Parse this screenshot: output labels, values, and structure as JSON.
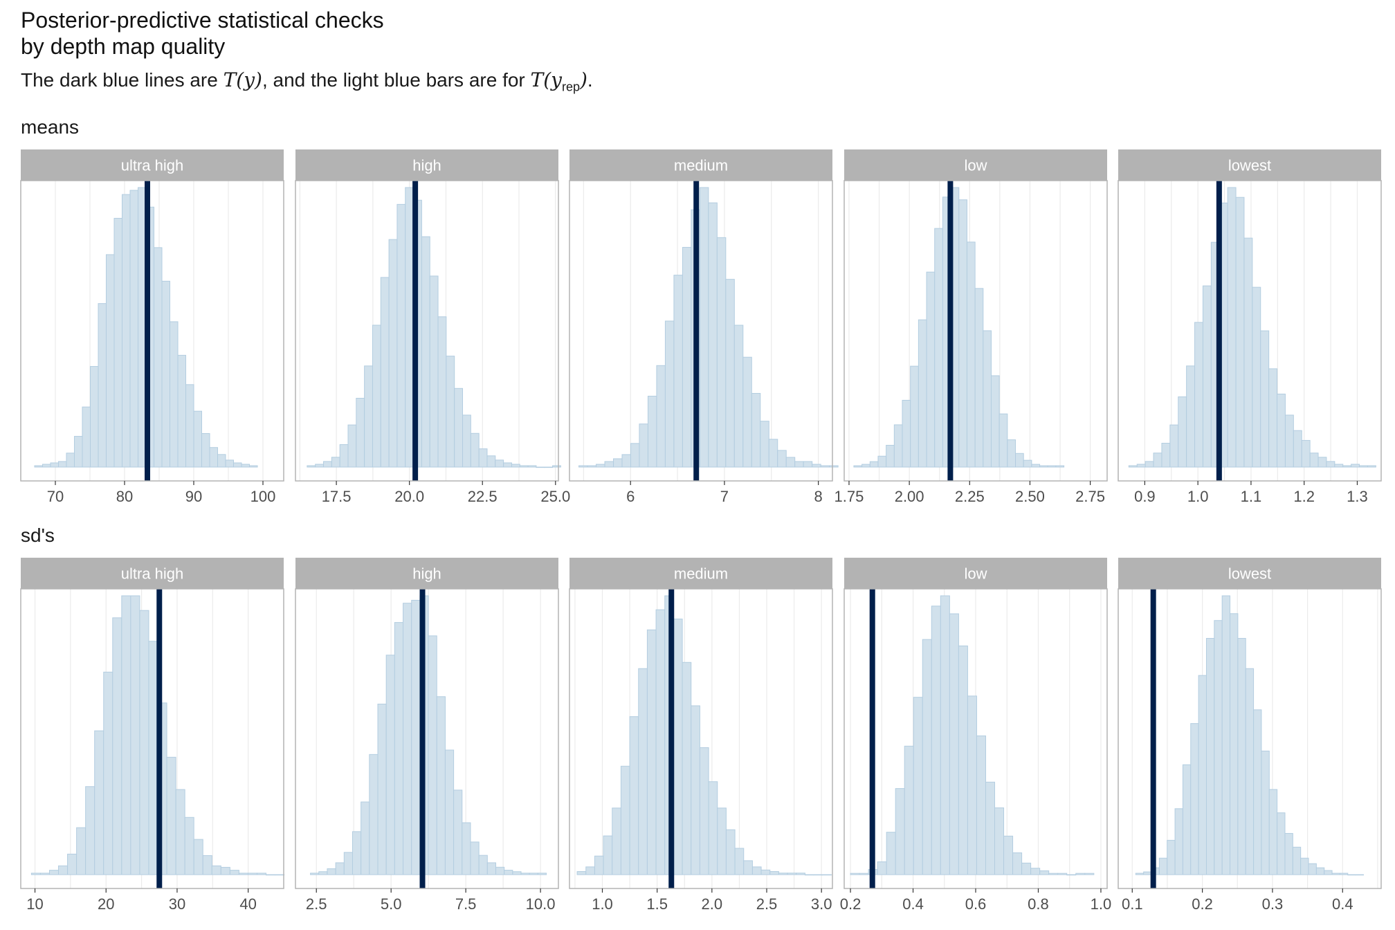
{
  "title_line1": "Posterior-predictive statistical checks",
  "title_line2": "by depth map quality",
  "subtitle": {
    "before": "The dark blue lines are ",
    "ty": "T(y)",
    "middle": ", and the light blue bars are for ",
    "ty_rep_main": "T(y",
    "ty_rep_sub": "rep",
    "ty_rep_close": ")",
    "end": "."
  },
  "colors": {
    "bar_fill": "#d1e1ec",
    "bar_stroke": "#b3cde0",
    "line": "#011f4b",
    "strip": "#b3b3b3",
    "panel_border": "#b3b3b3",
    "grid": "#ebebeb"
  },
  "chart_data": [
    {
      "row_label": "means",
      "type": "histogram",
      "panels": [
        {
          "strip": "ultra high",
          "xlim": [
            65,
            103
          ],
          "ticks": [
            70,
            80,
            90,
            100
          ],
          "tick_labels": [
            "70",
            "80",
            "90",
            "100"
          ],
          "observed": 83.3,
          "bins_start": 67,
          "bin_width": 1.15,
          "counts": [
            1,
            2,
            3,
            4,
            10,
            22,
            43,
            72,
            117,
            152,
            178,
            195,
            198,
            200,
            186,
            157,
            133,
            104,
            80,
            59,
            40,
            24,
            14,
            9,
            5,
            3,
            2,
            1
          ]
        },
        {
          "strip": "high",
          "xlim": [
            16.1,
            25.1
          ],
          "ticks": [
            17.5,
            20.0,
            22.5,
            25.0
          ],
          "tick_labels": [
            "17.5",
            "20.0",
            "22.5",
            "25.0"
          ],
          "observed": 20.2,
          "bins_start": 16.5,
          "bin_width": 0.28,
          "counts": [
            1,
            2,
            4,
            7,
            16,
            30,
            49,
            72,
            101,
            135,
            162,
            187,
            199,
            190,
            164,
            136,
            107,
            79,
            56,
            37,
            24,
            13,
            8,
            5,
            3,
            2,
            1,
            1,
            0,
            0,
            1
          ]
        },
        {
          "strip": "medium",
          "xlim": [
            5.35,
            8.15
          ],
          "ticks": [
            6,
            7,
            8
          ],
          "tick_labels": [
            "6",
            "7",
            "8"
          ],
          "observed": 6.7,
          "bins_start": 5.45,
          "bin_width": 0.092,
          "counts": [
            1,
            1,
            2,
            4,
            6,
            9,
            17,
            31,
            51,
            73,
            105,
            138,
            158,
            185,
            201,
            190,
            165,
            135,
            102,
            79,
            53,
            33,
            20,
            12,
            7,
            4,
            4,
            2,
            1,
            1
          ]
        },
        {
          "strip": "low",
          "xlim": [
            1.73,
            2.82
          ],
          "ticks": [
            1.75,
            2.0,
            2.25,
            2.5,
            2.75
          ],
          "tick_labels": [
            "1.75",
            "2.00",
            "2.25",
            "2.50",
            "2.75"
          ],
          "observed": 2.17,
          "bins_start": 1.77,
          "bin_width": 0.0335,
          "counts": [
            1,
            2,
            4,
            8,
            16,
            31,
            49,
            74,
            108,
            143,
            175,
            198,
            205,
            196,
            165,
            131,
            100,
            67,
            39,
            20,
            10,
            5,
            2,
            1,
            1,
            1
          ]
        },
        {
          "strip": "lowest",
          "xlim": [
            0.85,
            1.345
          ],
          "ticks": [
            0.9,
            1.0,
            1.1,
            1.2,
            1.3
          ],
          "tick_labels": [
            "0.9",
            "1.0",
            "1.1",
            "1.2",
            "1.3"
          ],
          "observed": 1.04,
          "bins_start": 0.87,
          "bin_width": 0.0155,
          "counts": [
            1,
            2,
            4,
            10,
            17,
            30,
            50,
            72,
            103,
            129,
            160,
            188,
            199,
            192,
            163,
            128,
            97,
            70,
            52,
            37,
            26,
            19,
            10,
            7,
            4,
            2,
            1,
            2,
            1,
            1
          ]
        }
      ]
    },
    {
      "row_label": "sd's",
      "type": "histogram",
      "panels": [
        {
          "strip": "ultra high",
          "xlim": [
            8,
            45
          ],
          "ticks": [
            10,
            20,
            30,
            40
          ],
          "tick_labels": [
            "10",
            "20",
            "30",
            "40"
          ],
          "observed": 27.5,
          "bins_start": 9.5,
          "bin_width": 1.27,
          "counts": [
            1,
            1,
            3,
            6,
            14,
            32,
            60,
            98,
            138,
            175,
            190,
            190,
            180,
            159,
            117,
            80,
            58,
            39,
            24,
            13,
            6,
            5,
            3,
            1,
            1,
            1,
            0,
            0
          ]
        },
        {
          "strip": "high",
          "xlim": [
            1.8,
            10.6
          ],
          "ticks": [
            2.5,
            5.0,
            7.5,
            10.0
          ],
          "tick_labels": [
            "2.5",
            "5.0",
            "7.5",
            "10.0"
          ],
          "observed": 6.05,
          "bins_start": 2.3,
          "bin_width": 0.282,
          "counts": [
            1,
            2,
            4,
            8,
            15,
            29,
            49,
            81,
            115,
            148,
            170,
            183,
            185,
            188,
            161,
            120,
            84,
            57,
            35,
            22,
            13,
            8,
            5,
            3,
            2,
            1,
            1,
            1
          ]
        },
        {
          "strip": "medium",
          "xlim": [
            0.7,
            3.1
          ],
          "ticks": [
            1.0,
            1.5,
            2.0,
            2.5,
            3.0
          ],
          "tick_labels": [
            "1.0",
            "1.5",
            "2.0",
            "2.5",
            "3.0"
          ],
          "observed": 1.63,
          "bins_start": 0.77,
          "bin_width": 0.08,
          "counts": [
            2,
            5,
            12,
            25,
            43,
            70,
            102,
            133,
            158,
            171,
            180,
            165,
            137,
            109,
            82,
            60,
            43,
            29,
            17,
            9,
            5,
            3,
            2,
            1,
            1,
            1,
            0,
            0,
            0
          ]
        },
        {
          "strip": "low",
          "xlim": [
            0.18,
            1.02
          ],
          "ticks": [
            0.2,
            0.4,
            0.6,
            0.8,
            1.0
          ],
          "tick_labels": [
            "0.2",
            "0.4",
            "0.6",
            "0.8",
            "1.0"
          ],
          "observed": 0.27,
          "bins_start": 0.2,
          "bin_width": 0.0288,
          "counts": [
            1,
            1,
            4,
            10,
            33,
            67,
            100,
            138,
            183,
            209,
            217,
            203,
            178,
            139,
            108,
            72,
            52,
            30,
            17,
            9,
            5,
            3,
            1,
            1,
            0,
            1,
            1
          ]
        },
        {
          "strip": "lowest",
          "xlim": [
            0.08,
            0.455
          ],
          "ticks": [
            0.1,
            0.2,
            0.3,
            0.4
          ],
          "tick_labels": [
            "0.1",
            "0.2",
            "0.3",
            "0.4"
          ],
          "observed": 0.13,
          "bins_start": 0.105,
          "bin_width": 0.0112,
          "counts": [
            1,
            2,
            5,
            12,
            25,
            48,
            80,
            110,
            145,
            172,
            185,
            203,
            190,
            172,
            150,
            120,
            90,
            62,
            45,
            30,
            20,
            12,
            8,
            5,
            3,
            1,
            1,
            0,
            0
          ]
        }
      ]
    }
  ]
}
